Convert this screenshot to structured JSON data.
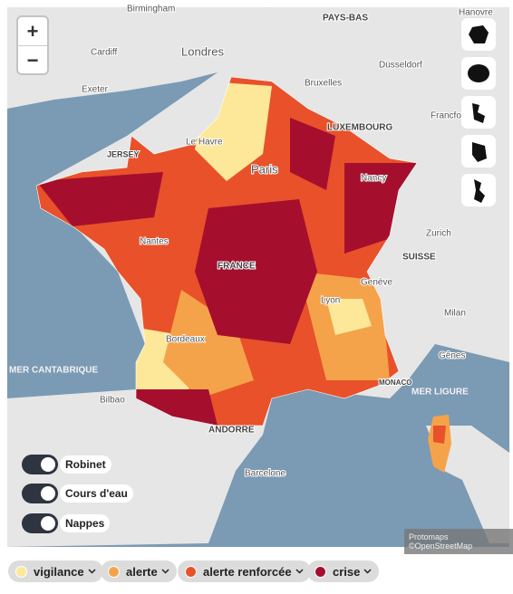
{
  "zoom": {
    "in": "+",
    "out": "−"
  },
  "map": {
    "places": [
      "Birmingham",
      "Cardiff",
      "Londres",
      "PAYS-BAS",
      "Hanovre",
      "Exeter",
      "Bruxelles",
      "Düsseldorf",
      "Le Havre",
      "LUXEMBOURG",
      "Francfort",
      "JERSEY",
      "Paris",
      "Nancy",
      "Nantes",
      "FRANCE",
      "SUISSE",
      "Zurich",
      "Genève",
      "Lyon",
      "Milan",
      "Bordeaux",
      "MER CANTABRIQUE",
      "Gênes",
      "Bilbao",
      "MONACO",
      "MER LIGURE",
      "ANDORRE",
      "Barcelone"
    ],
    "attribution": "Protomaps ©OpenStreetMap"
  },
  "toggles": [
    "Robinet",
    "Cours d'eau",
    "Nappes"
  ],
  "legend": [
    "vigilance",
    "alerte",
    "alerte renforcée",
    "crise"
  ]
}
